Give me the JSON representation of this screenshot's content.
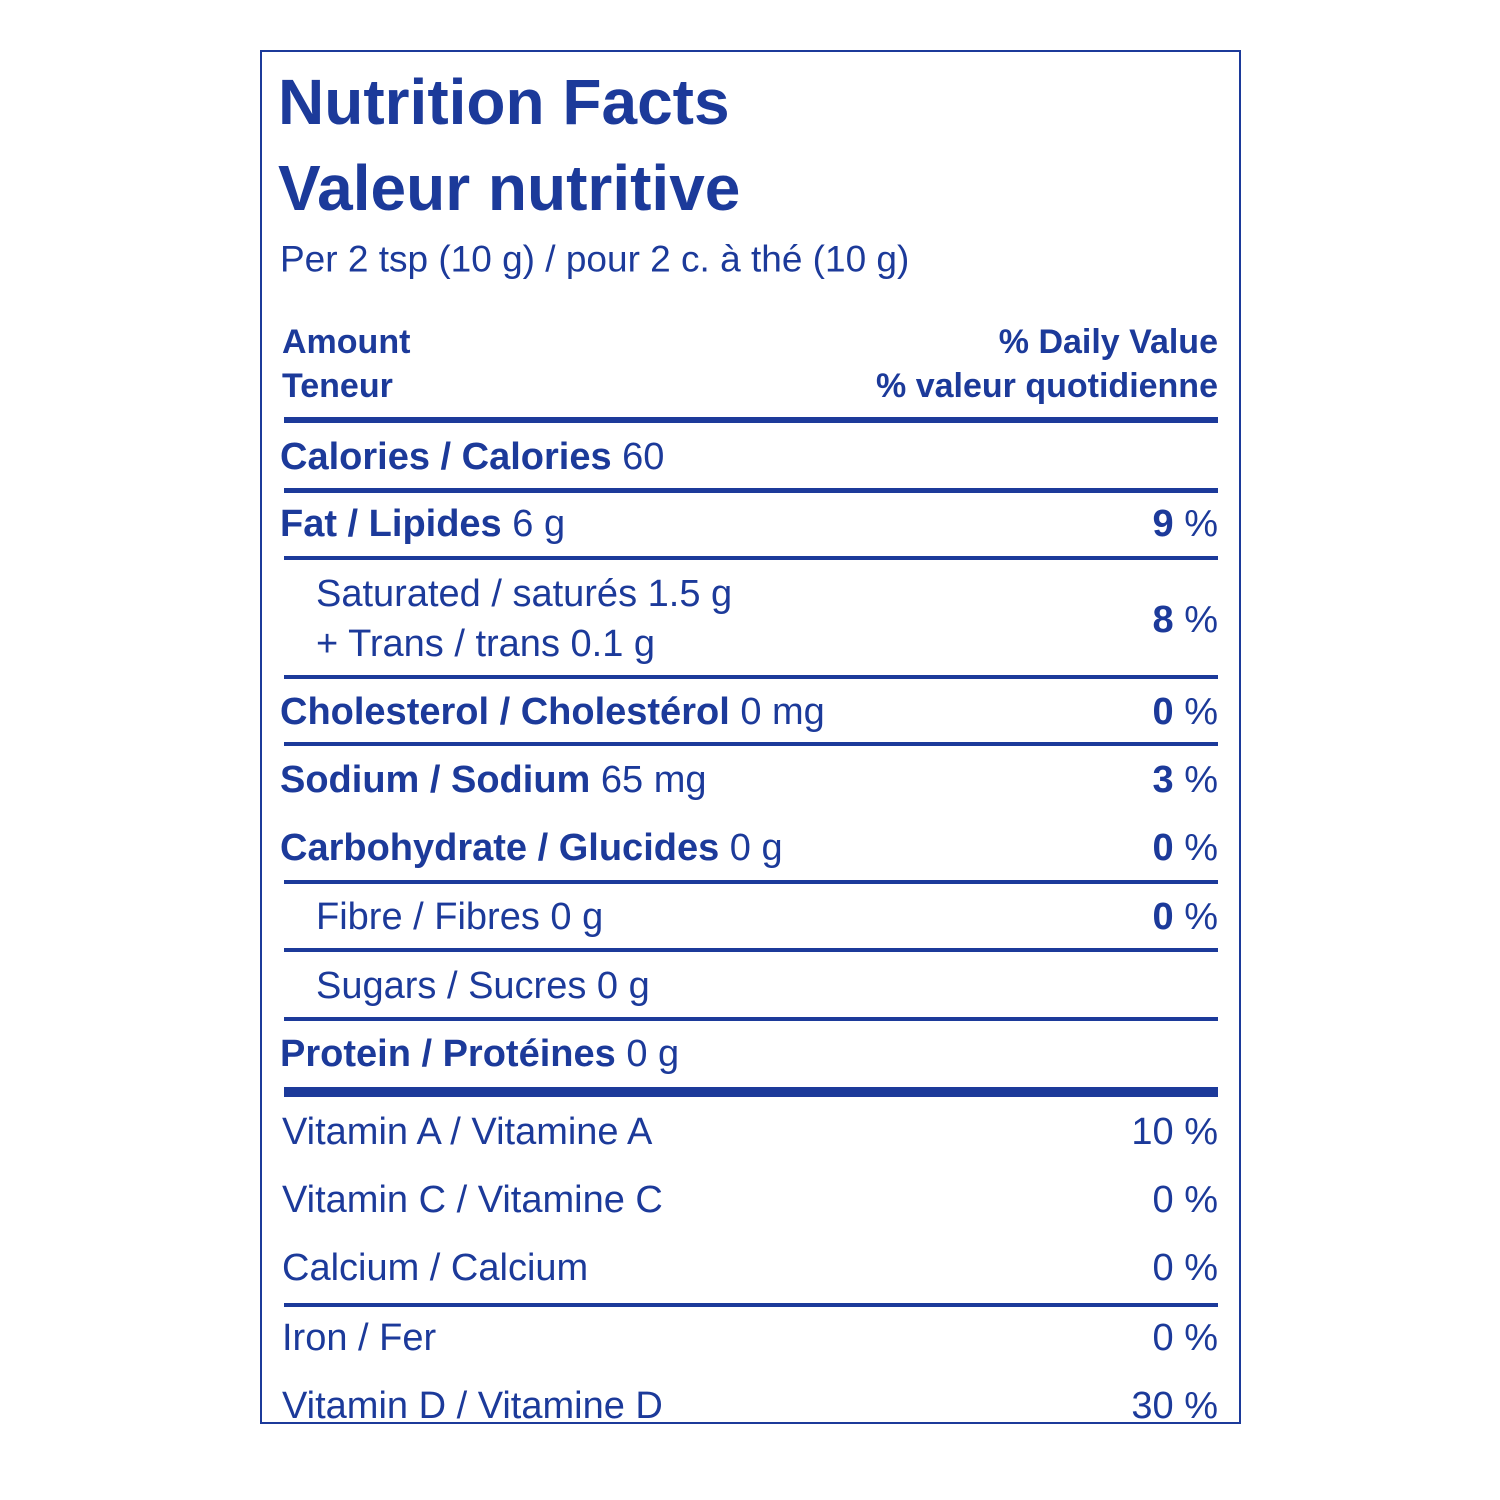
{
  "header": {
    "title": "Nutrition Facts",
    "title_fr": "Valeur nutritive",
    "serving": "Per 2 tsp (10 g) / pour 2 c. à thé (10 g)"
  },
  "columns": {
    "amount": "Amount",
    "amount_fr": "Teneur",
    "dv": "% Daily Value",
    "dv_fr": "% valeur quotidienne"
  },
  "nutrients": [
    {
      "label": "Calories / Calories",
      "amount": "60"
    },
    {
      "label": "Fat / Lipides",
      "amount": "6 g",
      "dv": "9",
      "unit": "%"
    },
    {
      "lines": [
        "Saturated / saturés 1.5 g",
        "+ Trans / trans 0.1 g"
      ],
      "dv": "8",
      "unit": "%"
    },
    {
      "label": "Cholesterol / Cholestérol",
      "amount": "0 mg",
      "dv": "0",
      "unit": "%"
    },
    {
      "label": "Sodium / Sodium",
      "amount": "65 mg",
      "dv": "3",
      "unit": "%"
    },
    {
      "label": "Carbohydrate / Glucides",
      "amount": "0 g",
      "dv": "0",
      "unit": "%"
    },
    {
      "label": "Fibre / Fibres",
      "amount": "0 g",
      "dv": "0",
      "unit": "%"
    },
    {
      "label": "Sugars / Sucres",
      "amount": "0 g"
    },
    {
      "label": "Protein / Protéines",
      "amount": "0 g"
    }
  ],
  "vitamins": [
    {
      "label": "Vitamin A / Vitamine A",
      "dv": "10 %"
    },
    {
      "label": "Vitamin C / Vitamine C",
      "dv": "0 %"
    },
    {
      "label": "Calcium / Calcium",
      "dv": "0 %"
    },
    {
      "label": "Iron / Fer",
      "dv": "0 %"
    },
    {
      "label": "Vitamin D / Vitamine D",
      "dv": "30 %"
    }
  ]
}
